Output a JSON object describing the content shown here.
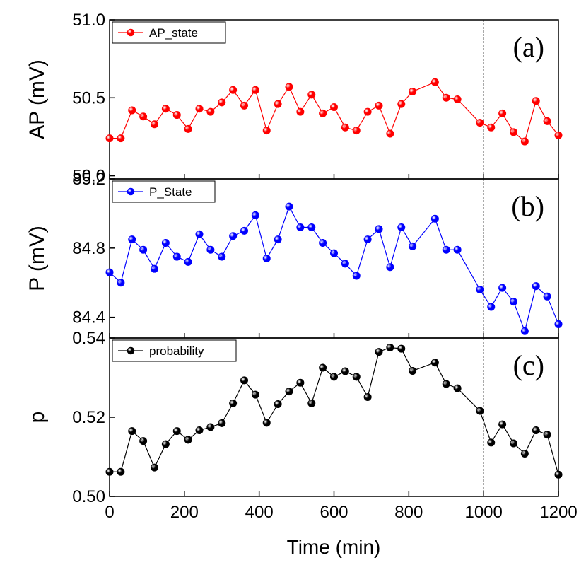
{
  "chart_data": [
    {
      "type": "line",
      "panel_tag": "(a)",
      "ylabel": "AP (mV)",
      "legend": "AP_state",
      "color": "#ff0000",
      "ylim": [
        49.98,
        51.0
      ],
      "yticks": [
        {
          "value": 51.0,
          "label": "51.0"
        },
        {
          "value": 50.5,
          "label": "50.5"
        },
        {
          "value": 50.0,
          "label": "50.0"
        }
      ],
      "x": [
        0,
        30,
        60,
        90,
        120,
        150,
        180,
        210,
        240,
        270,
        300,
        330,
        360,
        390,
        420,
        450,
        480,
        510,
        540,
        570,
        600,
        630,
        660,
        690,
        720,
        750,
        780,
        810,
        870,
        900,
        930,
        990,
        1020,
        1050,
        1080,
        1110,
        1140,
        1170,
        1200
      ],
      "y": [
        50.24,
        50.24,
        50.42,
        50.38,
        50.33,
        50.43,
        50.39,
        50.3,
        50.43,
        50.41,
        50.47,
        50.55,
        50.45,
        50.55,
        50.29,
        50.46,
        50.57,
        50.41,
        50.52,
        50.4,
        50.44,
        50.31,
        50.29,
        50.41,
        50.45,
        50.27,
        50.46,
        50.54,
        50.6,
        50.5,
        50.49,
        50.34,
        50.31,
        50.4,
        50.28,
        50.22,
        50.48,
        50.35,
        50.26
      ]
    },
    {
      "type": "line",
      "panel_tag": "(b)",
      "ylabel": "P (mV)",
      "legend": "P_State",
      "color": "#0000ff",
      "ylim": [
        84.28,
        85.2
      ],
      "yticks": [
        {
          "value": 85.2,
          "label": "85.2"
        },
        {
          "value": 84.8,
          "label": "84.8"
        },
        {
          "value": 84.4,
          "label": "84.4"
        }
      ],
      "x": [
        0,
        30,
        60,
        90,
        120,
        150,
        180,
        210,
        240,
        270,
        300,
        330,
        360,
        390,
        420,
        450,
        480,
        510,
        540,
        570,
        600,
        630,
        660,
        690,
        720,
        750,
        780,
        810,
        870,
        900,
        930,
        990,
        1020,
        1050,
        1080,
        1110,
        1140,
        1170,
        1200
      ],
      "y": [
        84.66,
        84.6,
        84.85,
        84.79,
        84.68,
        84.83,
        84.75,
        84.72,
        84.88,
        84.79,
        84.75,
        84.87,
        84.9,
        84.99,
        84.74,
        84.85,
        85.04,
        84.92,
        84.92,
        84.83,
        84.77,
        84.71,
        84.64,
        84.85,
        84.91,
        84.69,
        84.92,
        84.81,
        84.97,
        84.79,
        84.79,
        84.56,
        84.46,
        84.57,
        84.49,
        84.32,
        84.58,
        84.52,
        84.36
      ]
    },
    {
      "type": "line",
      "panel_tag": "(c)",
      "ylabel": "p",
      "legend": "probability",
      "color": "#000000",
      "ylim": [
        0.5,
        0.54
      ],
      "yticks": [
        {
          "value": 0.54,
          "label": "0.54"
        },
        {
          "value": 0.52,
          "label": "0.52"
        },
        {
          "value": 0.5,
          "label": "0.50"
        }
      ],
      "x": [
        0,
        30,
        60,
        90,
        120,
        150,
        180,
        210,
        240,
        270,
        300,
        330,
        360,
        390,
        420,
        450,
        480,
        510,
        540,
        570,
        600,
        630,
        660,
        690,
        720,
        750,
        780,
        810,
        870,
        900,
        930,
        990,
        1020,
        1050,
        1080,
        1110,
        1140,
        1170,
        1200
      ],
      "y": [
        0.5062,
        0.5062,
        0.5165,
        0.514,
        0.5073,
        0.5132,
        0.5165,
        0.5143,
        0.5167,
        0.5175,
        0.5185,
        0.5235,
        0.5293,
        0.5257,
        0.5186,
        0.5233,
        0.5265,
        0.5287,
        0.5235,
        0.5325,
        0.5302,
        0.5316,
        0.5302,
        0.5251,
        0.5365,
        0.5376,
        0.5373,
        0.5317,
        0.5338,
        0.5284,
        0.5273,
        0.5216,
        0.5136,
        0.5182,
        0.5134,
        0.5108,
        0.5167,
        0.5156,
        0.5055
      ]
    }
  ],
  "x_axis": {
    "label": "Time (min)",
    "xlim": [
      0,
      1200
    ],
    "ticks": [
      {
        "value": 0,
        "label": "0"
      },
      {
        "value": 200,
        "label": "200"
      },
      {
        "value": 400,
        "label": "400"
      },
      {
        "value": 600,
        "label": "600"
      },
      {
        "value": 800,
        "label": "800"
      },
      {
        "value": 1000,
        "label": "1000"
      },
      {
        "value": 1200,
        "label": "1200"
      }
    ]
  },
  "reference_lines_x": [
    600,
    1000
  ]
}
